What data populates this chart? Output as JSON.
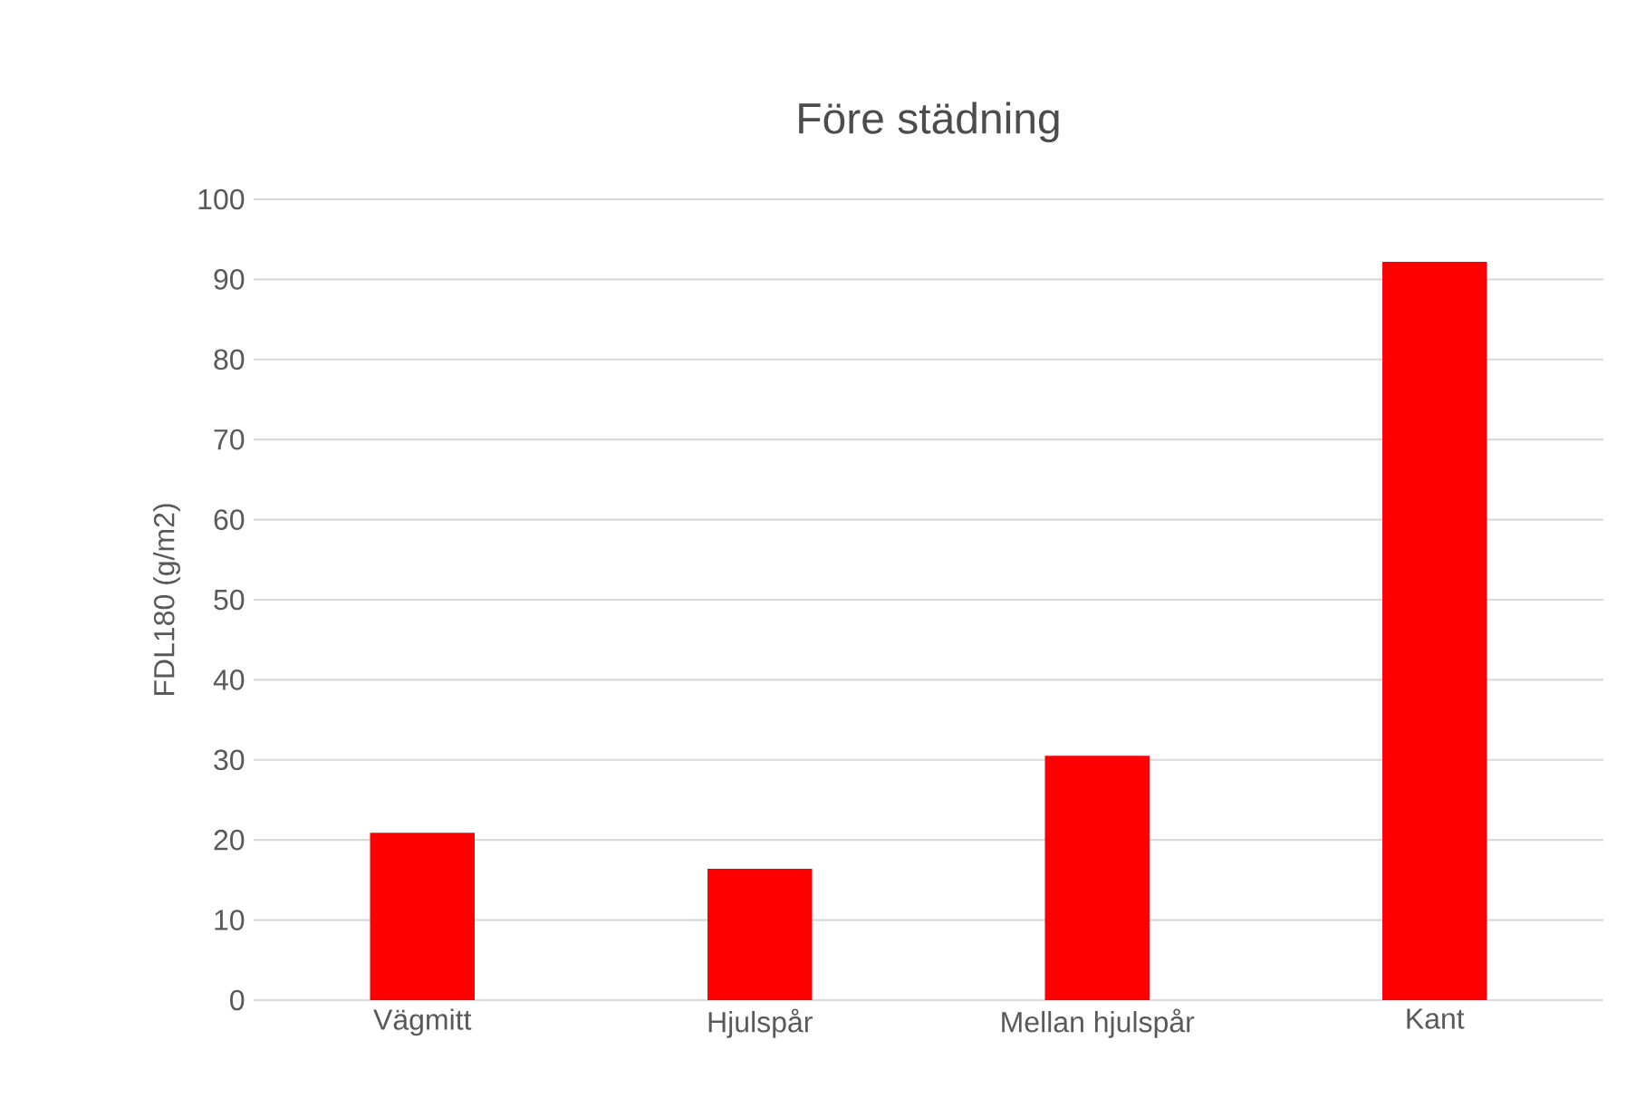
{
  "chart_data": {
    "type": "bar",
    "title": "Före städning",
    "ylabel": "FDL180 (g/m2)",
    "categories": [
      "Vägmitt",
      "Hjulspår",
      "Mellan hjulspår",
      "Kant"
    ],
    "values": [
      20.9,
      16.4,
      30.5,
      92.2
    ],
    "color": "#ff0000",
    "ylim": [
      0,
      100
    ],
    "yticks": [
      0,
      10,
      20,
      30,
      40,
      50,
      60,
      70,
      80,
      90,
      100
    ],
    "grid": "y"
  }
}
